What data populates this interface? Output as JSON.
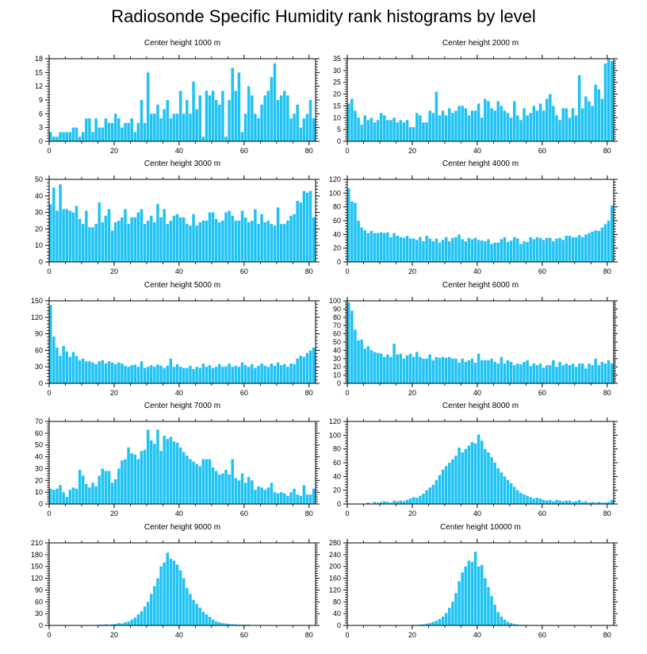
{
  "title": "Radiosonde Specific Humidity rank histograms by level",
  "colors": {
    "bar": "#1EC3F5",
    "bar_edge": "#ffffff",
    "axis": "#000000"
  },
  "chart_data": [
    {
      "type": "bar",
      "title": "Center height 1000 m",
      "xlim": [
        0,
        82
      ],
      "ylim": [
        0,
        18
      ],
      "xticks": [
        0,
        20,
        40,
        60,
        80
      ],
      "yticks": [
        0,
        3,
        6,
        9,
        12,
        15,
        18
      ],
      "values": [
        2,
        1,
        1,
        2,
        2,
        2,
        2,
        3,
        3,
        1,
        2,
        5,
        5,
        2,
        5,
        3,
        3,
        5,
        4,
        4,
        6,
        5,
        3,
        4,
        4,
        5,
        2,
        4,
        9,
        4,
        15,
        6,
        6,
        8,
        5,
        7,
        9,
        5,
        6,
        6,
        11,
        6,
        9,
        6,
        13,
        7,
        10,
        1,
        11,
        10,
        11,
        9,
        8,
        11,
        1,
        9,
        16,
        11,
        15,
        2,
        6,
        12,
        10,
        6,
        5,
        8,
        10,
        11,
        14,
        17,
        9,
        10,
        11,
        10,
        5,
        6,
        8,
        3,
        5,
        6,
        9,
        5
      ],
      "series_name": "1000 m"
    },
    {
      "type": "bar",
      "title": "Center height 2000 m",
      "xlim": [
        0,
        82
      ],
      "ylim": [
        0,
        35
      ],
      "xticks": [
        0,
        20,
        40,
        60,
        80
      ],
      "yticks": [
        0,
        5,
        10,
        15,
        20,
        25,
        30,
        35
      ],
      "values": [
        16,
        18,
        13,
        10,
        7,
        11,
        9,
        10,
        8,
        9,
        12,
        11,
        9,
        9,
        10,
        8,
        9,
        8,
        9,
        6,
        6,
        12,
        11,
        8,
        8,
        13,
        12,
        21,
        11,
        13,
        11,
        14,
        12,
        13,
        15,
        15,
        14,
        11,
        13,
        13,
        16,
        10,
        18,
        17,
        14,
        13,
        17,
        15,
        13,
        12,
        10,
        17,
        11,
        9,
        14,
        11,
        12,
        15,
        13,
        16,
        13,
        18,
        20,
        15,
        11,
        9,
        14,
        14,
        10,
        14,
        11,
        28,
        14,
        19,
        17,
        15,
        24,
        22,
        18,
        33,
        35,
        34
      ],
      "series_name": "2000 m"
    },
    {
      "type": "bar",
      "title": "Center height 3000 m",
      "xlim": [
        0,
        82
      ],
      "ylim": [
        0,
        50
      ],
      "xticks": [
        0,
        20,
        40,
        60,
        80
      ],
      "yticks": [
        0,
        10,
        20,
        30,
        40,
        50
      ],
      "values": [
        35,
        45,
        31,
        47,
        32,
        32,
        31,
        30,
        34,
        26,
        23,
        31,
        21,
        21,
        23,
        36,
        24,
        28,
        32,
        19,
        24,
        25,
        27,
        32,
        23,
        27,
        27,
        30,
        32,
        23,
        25,
        28,
        24,
        35,
        27,
        32,
        23,
        25,
        28,
        29,
        27,
        27,
        23,
        22,
        29,
        22,
        24,
        25,
        25,
        30,
        30,
        26,
        24,
        25,
        30,
        31,
        28,
        25,
        25,
        31,
        27,
        24,
        25,
        32,
        23,
        29,
        24,
        25,
        23,
        22,
        33,
        23,
        23,
        25,
        28,
        29,
        37,
        36,
        43,
        42,
        43,
        27
      ],
      "series_name": "3000 m"
    },
    {
      "type": "bar",
      "title": "Center height 4000 m",
      "xlim": [
        0,
        82
      ],
      "ylim": [
        0,
        120
      ],
      "xticks": [
        0,
        20,
        40,
        60,
        80
      ],
      "yticks": [
        0,
        20,
        40,
        60,
        80,
        100,
        120
      ],
      "values": [
        107,
        88,
        86,
        60,
        50,
        46,
        42,
        45,
        42,
        42,
        43,
        42,
        43,
        36,
        42,
        38,
        36,
        35,
        38,
        34,
        34,
        32,
        36,
        30,
        38,
        34,
        30,
        34,
        28,
        32,
        36,
        30,
        35,
        36,
        40,
        33,
        30,
        35,
        33,
        35,
        32,
        31,
        30,
        33,
        26,
        28,
        28,
        33,
        36,
        29,
        31,
        36,
        34,
        26,
        30,
        29,
        36,
        33,
        36,
        35,
        32,
        35,
        35,
        30,
        34,
        35,
        32,
        38,
        38,
        36,
        36,
        39,
        36,
        40,
        42,
        44,
        46,
        45,
        50,
        55,
        60,
        82
      ],
      "series_name": "4000 m"
    },
    {
      "type": "bar",
      "title": "Center height 5000 m",
      "xlim": [
        0,
        82
      ],
      "ylim": [
        0,
        150
      ],
      "xticks": [
        0,
        20,
        40,
        60,
        80
      ],
      "yticks": [
        0,
        30,
        60,
        90,
        120,
        150
      ],
      "values": [
        142,
        85,
        65,
        50,
        68,
        58,
        48,
        57,
        50,
        42,
        45,
        40,
        40,
        38,
        35,
        40,
        42,
        36,
        40,
        38,
        35,
        38,
        36,
        32,
        30,
        33,
        34,
        30,
        40,
        28,
        30,
        33,
        30,
        34,
        32,
        28,
        32,
        45,
        30,
        35,
        30,
        28,
        28,
        32,
        26,
        30,
        28,
        36,
        30,
        33,
        28,
        30,
        35,
        30,
        31,
        36,
        30,
        32,
        30,
        38,
        33,
        30,
        35,
        28,
        32,
        36,
        32,
        30,
        36,
        32,
        38,
        33,
        35,
        30,
        36,
        35,
        45,
        50,
        48,
        55,
        60,
        65
      ],
      "series_name": "5000 m"
    },
    {
      "type": "bar",
      "title": "Center height 6000 m",
      "xlim": [
        0,
        82
      ],
      "ylim": [
        0,
        100
      ],
      "xticks": [
        0,
        20,
        40,
        60,
        80
      ],
      "yticks": [
        0,
        10,
        20,
        30,
        40,
        50,
        60,
        70,
        80,
        90,
        100
      ],
      "values": [
        98,
        88,
        65,
        52,
        53,
        42,
        45,
        40,
        38,
        37,
        36,
        32,
        35,
        32,
        48,
        35,
        36,
        30,
        34,
        36,
        32,
        38,
        32,
        30,
        30,
        35,
        28,
        32,
        31,
        32,
        31,
        32,
        30,
        30,
        25,
        30,
        26,
        28,
        30,
        25,
        36,
        28,
        28,
        28,
        30,
        26,
        24,
        32,
        24,
        28,
        26,
        22,
        24,
        23,
        26,
        28,
        21,
        24,
        22,
        24,
        19,
        22,
        22,
        28,
        20,
        26,
        22,
        24,
        22,
        24,
        20,
        24,
        24,
        18,
        24,
        22,
        30,
        22,
        26,
        24,
        28,
        24
      ],
      "series_name": "6000 m"
    },
    {
      "type": "bar",
      "title": "Center height 7000 m",
      "xlim": [
        0,
        82
      ],
      "ylim": [
        0,
        70
      ],
      "xticks": [
        0,
        20,
        40,
        60,
        80
      ],
      "yticks": [
        0,
        10,
        20,
        30,
        40,
        50,
        60,
        70
      ],
      "values": [
        13,
        12,
        13,
        16,
        10,
        6,
        12,
        14,
        13,
        29,
        24,
        17,
        14,
        18,
        15,
        24,
        30,
        28,
        28,
        18,
        21,
        30,
        37,
        38,
        48,
        43,
        42,
        38,
        45,
        46,
        63,
        54,
        51,
        63,
        45,
        58,
        55,
        57,
        53,
        52,
        48,
        44,
        41,
        38,
        36,
        34,
        32,
        38,
        38,
        38,
        31,
        28,
        25,
        26,
        29,
        25,
        38,
        22,
        20,
        26,
        18,
        23,
        20,
        12,
        15,
        14,
        12,
        14,
        18,
        10,
        9,
        10,
        9,
        7,
        10,
        13,
        8,
        7,
        16,
        8,
        8,
        13
      ],
      "series_name": "7000 m"
    },
    {
      "type": "bar",
      "title": "Center height 8000 m",
      "xlim": [
        0,
        82
      ],
      "ylim": [
        0,
        120
      ],
      "xticks": [
        0,
        20,
        40,
        60,
        80
      ],
      "yticks": [
        0,
        20,
        40,
        60,
        80,
        100,
        120
      ],
      "values": [
        0,
        0,
        0,
        0,
        0,
        0,
        2,
        0,
        3,
        2,
        3,
        4,
        3,
        2,
        5,
        4,
        5,
        4,
        6,
        8,
        10,
        9,
        12,
        15,
        20,
        24,
        28,
        35,
        42,
        50,
        55,
        60,
        65,
        70,
        82,
        75,
        80,
        85,
        90,
        88,
        101,
        92,
        80,
        75,
        68,
        60,
        52,
        46,
        40,
        35,
        30,
        25,
        20,
        16,
        14,
        12,
        10,
        8,
        9,
        8,
        6,
        5,
        6,
        4,
        6,
        5,
        4,
        5,
        5,
        3,
        4,
        6,
        3,
        4,
        2,
        3,
        2,
        3,
        2,
        2,
        3,
        6
      ],
      "series_name": "8000 m"
    },
    {
      "type": "bar",
      "title": "Center height 9000 m",
      "xlim": [
        0,
        82
      ],
      "ylim": [
        0,
        210
      ],
      "xticks": [
        0,
        20,
        40,
        60,
        80
      ],
      "yticks": [
        0,
        30,
        60,
        90,
        120,
        150,
        180,
        210
      ],
      "values": [
        0,
        0,
        0,
        0,
        0,
        0,
        0,
        0,
        0,
        0,
        0,
        1,
        1,
        1,
        1,
        2,
        2,
        3,
        2,
        3,
        4,
        6,
        5,
        8,
        10,
        15,
        20,
        28,
        36,
        48,
        60,
        80,
        100,
        120,
        150,
        160,
        185,
        170,
        165,
        155,
        140,
        120,
        95,
        80,
        65,
        55,
        45,
        35,
        28,
        22,
        15,
        10,
        8,
        6,
        5,
        4,
        3,
        3,
        2,
        2,
        2,
        2,
        1,
        1,
        1,
        1,
        1,
        1,
        0,
        0,
        0,
        0,
        0,
        0,
        0,
        0,
        0,
        0,
        0,
        0,
        0,
        0
      ],
      "series_name": "9000 m"
    },
    {
      "type": "bar",
      "title": "Center height 10000 m",
      "xlim": [
        0,
        82
      ],
      "ylim": [
        0,
        280
      ],
      "xticks": [
        0,
        20,
        40,
        60,
        80
      ],
      "yticks": [
        0,
        40,
        80,
        120,
        160,
        200,
        240,
        280
      ],
      "values": [
        0,
        0,
        0,
        0,
        0,
        0,
        0,
        0,
        0,
        0,
        0,
        0,
        0,
        0,
        0,
        0,
        0,
        0,
        1,
        1,
        2,
        2,
        3,
        4,
        6,
        8,
        12,
        16,
        22,
        30,
        42,
        60,
        80,
        110,
        150,
        180,
        200,
        220,
        215,
        250,
        200,
        205,
        160,
        130,
        100,
        70,
        45,
        30,
        20,
        12,
        8,
        5,
        3,
        2,
        2,
        1,
        1,
        1,
        0,
        0,
        0,
        0,
        0,
        0,
        0,
        0,
        0,
        0,
        0,
        0,
        0,
        0,
        0,
        0,
        0,
        0,
        0,
        0,
        0,
        0,
        0,
        0
      ],
      "series_name": "10000 m"
    }
  ]
}
